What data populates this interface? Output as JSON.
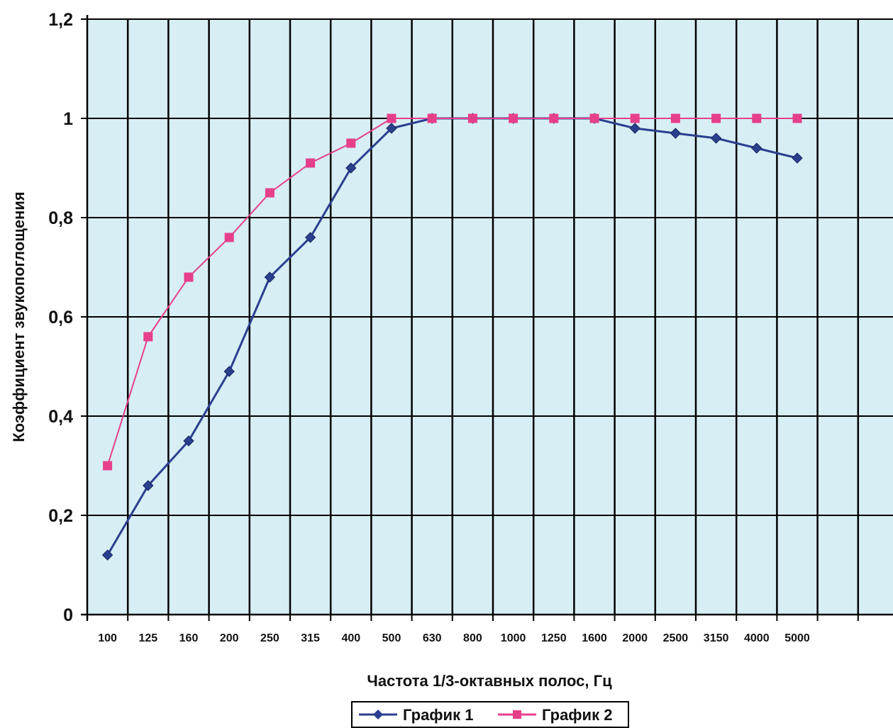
{
  "chart_data": {
    "type": "line",
    "categories": [
      "100",
      "125",
      "160",
      "200",
      "250",
      "315",
      "400",
      "500",
      "630",
      "800",
      "1000",
      "1250",
      "1600",
      "2000",
      "2500",
      "3150",
      "4000",
      "5000"
    ],
    "series": [
      {
        "name": "График 1",
        "color": "#2b3f8f",
        "marker": "diamond",
        "values": [
          0.12,
          0.26,
          0.35,
          0.49,
          0.68,
          0.76,
          0.9,
          0.98,
          1.0,
          1.0,
          1.0,
          1.0,
          1.0,
          0.98,
          0.97,
          0.96,
          0.94,
          0.92
        ]
      },
      {
        "name": "График 2",
        "color": "#e6408a",
        "marker": "square",
        "values": [
          0.3,
          0.56,
          0.68,
          0.76,
          0.85,
          0.91,
          0.95,
          1.0,
          1.0,
          1.0,
          1.0,
          1.0,
          1.0,
          1.0,
          1.0,
          1.0,
          1.0,
          1.0
        ]
      }
    ],
    "yticks": [
      "0",
      "0,2",
      "0,4",
      "0,6",
      "0,8",
      "1",
      "1,2"
    ],
    "ylim": [
      0,
      1.2
    ],
    "xlabel": "Частота 1/3-октавных полос, Гц",
    "ylabel": "Коэффициент звукопоглощения",
    "grid": true,
    "legend": "bottom",
    "plot_background": "#d7eef5"
  }
}
